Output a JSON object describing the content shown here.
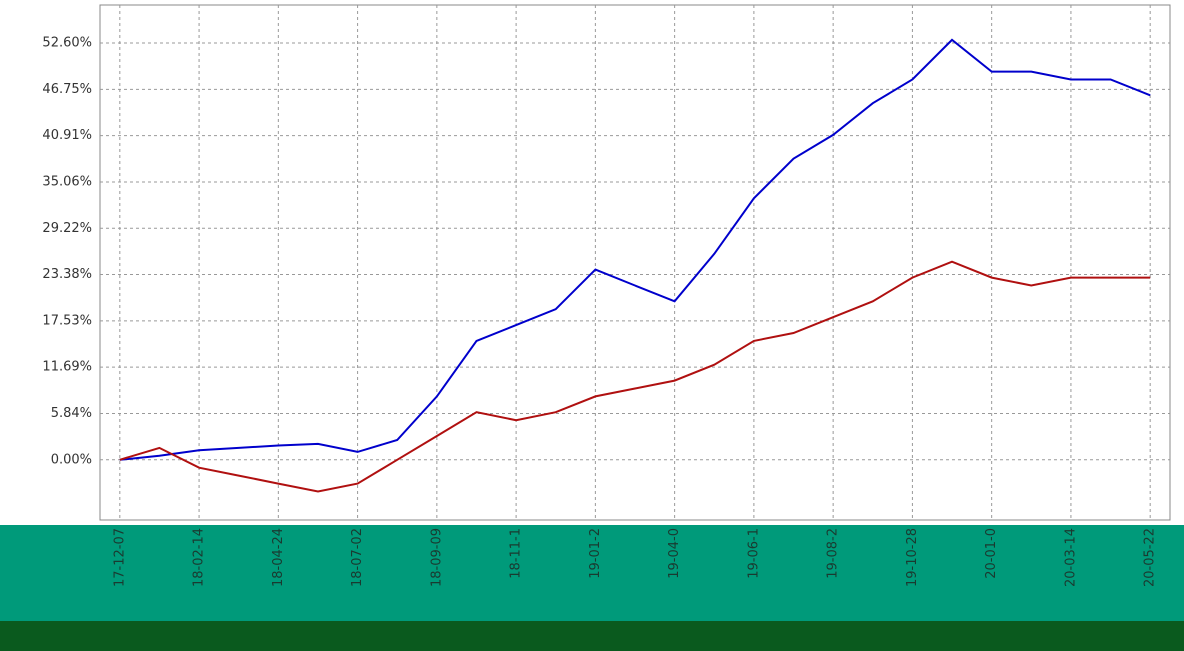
{
  "chart_data": {
    "type": "line",
    "categories": [
      "17-12-07",
      null,
      "18-02-14",
      null,
      "18-04-24",
      null,
      "18-07-02",
      null,
      "18-09-09",
      null,
      "18-11-1",
      null,
      "19-01-2",
      null,
      "19-04-0",
      null,
      "19-06-1",
      null,
      "19-08-2",
      null,
      "19-10-28",
      null,
      "20-01-0",
      null,
      "20-03-14",
      null,
      "20-05-22"
    ],
    "series": [
      {
        "color": "#0000cc",
        "values": [
          0,
          0.5,
          1.2,
          1.5,
          1.8,
          2.0,
          1.0,
          2.5,
          8,
          15,
          17,
          19,
          24,
          22,
          20,
          26,
          33,
          38,
          41,
          45,
          48,
          53,
          49,
          49,
          48,
          48,
          46
        ]
      },
      {
        "color": "#b01010",
        "values": [
          0,
          1.5,
          -1,
          -2,
          -3,
          -4,
          -3,
          0,
          3,
          6,
          5,
          6,
          8,
          9,
          10,
          12,
          15,
          16,
          18,
          20,
          23,
          25,
          23,
          22,
          23,
          23,
          23
        ]
      }
    ],
    "ylim": [
      -7.6,
      57.4
    ],
    "yticks": [
      {
        "value": 0,
        "label": "0.00%"
      },
      {
        "value": 5.84,
        "label": "5.84%"
      },
      {
        "value": 11.69,
        "label": "11.69%"
      },
      {
        "value": 17.53,
        "label": "17.53%"
      },
      {
        "value": 23.38,
        "label": "23.38%"
      },
      {
        "value": 29.22,
        "label": "29.22%"
      },
      {
        "value": 35.06,
        "label": "35.06%"
      },
      {
        "value": 40.91,
        "label": "40.91%"
      },
      {
        "value": 46.75,
        "label": "46.75%"
      },
      {
        "value": 52.6,
        "label": "52.60%"
      }
    ],
    "grid": true
  }
}
